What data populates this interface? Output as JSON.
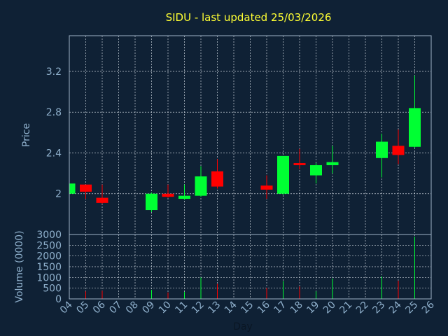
{
  "chart_data": {
    "type": "candlestick",
    "title": "SIDU - last updated 25/03/2026",
    "xlabel": "Day",
    "ylabel": "Price",
    "volume_label": "Volume (0000)",
    "price_ylim": [
      1.6,
      3.55
    ],
    "price_ticks": [
      "2",
      "2.4",
      "2.8",
      "3.2"
    ],
    "volume_ylim": [
      0,
      3000
    ],
    "volume_ticks": [
      "0",
      "500",
      "1000",
      "1500",
      "2000",
      "2500",
      "3000"
    ],
    "x_ticks": [
      "04",
      "05",
      "06",
      "07",
      "08",
      "09",
      "10",
      "11",
      "12",
      "13",
      "14",
      "15",
      "16",
      "17",
      "18",
      "19",
      "20",
      "21",
      "22",
      "23",
      "24",
      "25",
      "26"
    ],
    "grid": true,
    "colors": {
      "up": "#00ff33",
      "down": "#ff0000",
      "title": "#ffff33",
      "background": "#0f2135",
      "axis_text": "#8fb0cc"
    },
    "candles": [
      {
        "day": "04",
        "open": 2.0,
        "high": 2.11,
        "low": 1.99,
        "close": 2.1,
        "volume": 200
      },
      {
        "day": "05",
        "open": 2.09,
        "high": 2.09,
        "low": 1.95,
        "close": 2.02,
        "volume": 350
      },
      {
        "day": "06",
        "open": 1.96,
        "high": 2.09,
        "low": 1.9,
        "close": 1.91,
        "volume": 380
      },
      {
        "day": "09",
        "open": 1.84,
        "high": 2.01,
        "low": 1.82,
        "close": 2.0,
        "volume": 420
      },
      {
        "day": "10",
        "open": 2.0,
        "high": 2.09,
        "low": 1.96,
        "close": 1.97,
        "volume": 300
      },
      {
        "day": "11",
        "open": 1.95,
        "high": 2.09,
        "low": 1.94,
        "close": 1.98,
        "volume": 320
      },
      {
        "day": "12",
        "open": 1.98,
        "high": 2.27,
        "low": 1.97,
        "close": 2.17,
        "volume": 1000
      },
      {
        "day": "13",
        "open": 2.22,
        "high": 2.34,
        "low": 2.05,
        "close": 2.07,
        "volume": 700
      },
      {
        "day": "16",
        "open": 2.08,
        "high": 2.18,
        "low": 1.95,
        "close": 2.04,
        "volume": 520
      },
      {
        "day": "17",
        "open": 2.0,
        "high": 2.37,
        "low": 1.99,
        "close": 2.37,
        "volume": 830
      },
      {
        "day": "18",
        "open": 2.3,
        "high": 2.44,
        "low": 2.24,
        "close": 2.28,
        "volume": 580
      },
      {
        "day": "19",
        "open": 2.18,
        "high": 2.3,
        "low": 2.1,
        "close": 2.28,
        "volume": 350
      },
      {
        "day": "20",
        "open": 2.28,
        "high": 2.47,
        "low": 2.2,
        "close": 2.31,
        "volume": 950
      },
      {
        "day": "23",
        "open": 2.35,
        "high": 2.59,
        "low": 2.16,
        "close": 2.51,
        "volume": 1050
      },
      {
        "day": "24",
        "open": 2.47,
        "high": 2.63,
        "low": 2.29,
        "close": 2.38,
        "volume": 850
      },
      {
        "day": "25",
        "open": 2.46,
        "high": 3.16,
        "low": 2.45,
        "close": 2.84,
        "volume": 2900
      }
    ]
  }
}
